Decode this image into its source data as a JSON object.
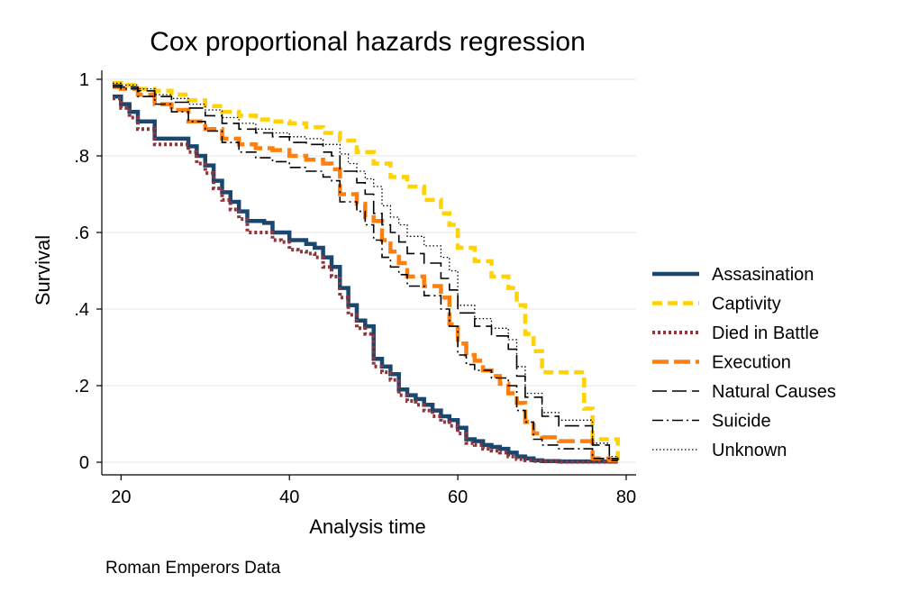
{
  "chart_data": {
    "type": "line",
    "title": "Cox proportional hazards regression",
    "xlabel": "Analysis time",
    "ylabel": "Survival",
    "note": "Roman Emperors Data",
    "xlim": [
      19,
      80
    ],
    "ylim": [
      0,
      1
    ],
    "xticks": [
      {
        "value": 20,
        "label": "20"
      },
      {
        "value": 40,
        "label": "40"
      },
      {
        "value": 60,
        "label": "60"
      },
      {
        "value": 80,
        "label": "80"
      }
    ],
    "yticks": [
      {
        "value": 0,
        "label": "0"
      },
      {
        "value": 0.2,
        "label": ".2"
      },
      {
        "value": 0.4,
        "label": ".4"
      },
      {
        "value": 0.6,
        "label": ".6"
      },
      {
        "value": 0.8,
        "label": ".8"
      },
      {
        "value": 1,
        "label": "1"
      }
    ],
    "grid": true,
    "legend_position": "right",
    "series": [
      {
        "name": "Assasination",
        "color": "#1a476f",
        "style": "solid",
        "x": [
          19,
          20,
          21,
          22,
          24,
          25,
          28,
          29,
          30,
          31,
          32,
          33,
          34,
          35,
          36,
          37,
          38,
          39,
          40,
          41,
          42,
          43,
          44,
          45,
          46,
          47,
          48,
          49,
          50,
          51,
          52,
          53,
          54,
          55,
          56,
          57,
          58,
          59,
          60,
          61,
          62,
          63,
          64,
          65,
          66,
          67,
          68,
          69,
          70,
          72,
          75,
          79
        ],
        "y": [
          0.955,
          0.935,
          0.915,
          0.89,
          0.845,
          0.845,
          0.825,
          0.8,
          0.775,
          0.735,
          0.705,
          0.68,
          0.655,
          0.63,
          0.63,
          0.625,
          0.6,
          0.6,
          0.58,
          0.58,
          0.57,
          0.56,
          0.535,
          0.51,
          0.455,
          0.41,
          0.37,
          0.355,
          0.27,
          0.25,
          0.23,
          0.19,
          0.175,
          0.165,
          0.15,
          0.135,
          0.12,
          0.11,
          0.09,
          0.06,
          0.055,
          0.045,
          0.04,
          0.035,
          0.025,
          0.015,
          0.01,
          0.005,
          0.003,
          0.002,
          0.002,
          0.002
        ]
      },
      {
        "name": "Captivity",
        "color": "#ffd200",
        "style": "dash",
        "x": [
          19,
          20,
          22,
          24,
          26,
          28,
          30,
          32,
          34,
          36,
          38,
          40,
          42,
          44,
          46,
          48,
          50,
          52,
          54,
          56,
          58,
          59,
          60,
          62,
          64,
          66,
          67,
          68,
          69,
          70,
          73,
          75,
          76,
          78,
          79
        ],
        "y": [
          0.99,
          0.985,
          0.975,
          0.97,
          0.96,
          0.945,
          0.93,
          0.915,
          0.905,
          0.895,
          0.89,
          0.885,
          0.875,
          0.86,
          0.84,
          0.81,
          0.78,
          0.745,
          0.72,
          0.685,
          0.65,
          0.62,
          0.56,
          0.525,
          0.485,
          0.455,
          0.41,
          0.335,
          0.29,
          0.235,
          0.235,
          0.14,
          0.06,
          0.06,
          0.005
        ]
      },
      {
        "name": "Died in Battle",
        "color": "#90353b",
        "style": "dot",
        "x": [
          19,
          20,
          21,
          22,
          24,
          25,
          28,
          29,
          30,
          31,
          32,
          33,
          34,
          35,
          36,
          37,
          38,
          39,
          40,
          41,
          42,
          43,
          44,
          45,
          46,
          47,
          48,
          49,
          50,
          51,
          52,
          53,
          54,
          55,
          56,
          57,
          58,
          59,
          60,
          61,
          62,
          63,
          64,
          65,
          66,
          67,
          68,
          69,
          70,
          72,
          75,
          79
        ],
        "y": [
          0.95,
          0.925,
          0.9,
          0.87,
          0.83,
          0.83,
          0.81,
          0.78,
          0.755,
          0.715,
          0.685,
          0.66,
          0.635,
          0.6,
          0.6,
          0.6,
          0.58,
          0.575,
          0.555,
          0.55,
          0.545,
          0.535,
          0.51,
          0.485,
          0.43,
          0.385,
          0.35,
          0.335,
          0.25,
          0.235,
          0.215,
          0.175,
          0.16,
          0.15,
          0.135,
          0.12,
          0.105,
          0.095,
          0.075,
          0.05,
          0.045,
          0.035,
          0.03,
          0.025,
          0.015,
          0.008,
          0.005,
          0.003,
          0.002,
          0.001,
          0.001,
          0.001
        ]
      },
      {
        "name": "Execution",
        "color": "#ff7f0e",
        "style": "longdash",
        "x": [
          19,
          20,
          22,
          24,
          26,
          28,
          30,
          32,
          34,
          36,
          38,
          40,
          42,
          44,
          45,
          46,
          48,
          49,
          50,
          51,
          52,
          53,
          54,
          56,
          58,
          59,
          60,
          61,
          62,
          63,
          64,
          65,
          66,
          67,
          68,
          69,
          70,
          72,
          74,
          76,
          78,
          79
        ],
        "y": [
          0.98,
          0.975,
          0.96,
          0.935,
          0.92,
          0.89,
          0.87,
          0.845,
          0.83,
          0.82,
          0.815,
          0.8,
          0.79,
          0.78,
          0.765,
          0.7,
          0.675,
          0.64,
          0.63,
          0.58,
          0.55,
          0.52,
          0.485,
          0.46,
          0.43,
          0.36,
          0.31,
          0.28,
          0.265,
          0.24,
          0.225,
          0.205,
          0.18,
          0.155,
          0.105,
          0.075,
          0.065,
          0.055,
          0.055,
          0.01,
          0.005,
          0.005
        ]
      },
      {
        "name": "Natural Causes",
        "color": "#000000",
        "style": "longdash-thin",
        "x": [
          19,
          20,
          22,
          24,
          26,
          28,
          30,
          32,
          34,
          36,
          38,
          40,
          42,
          44,
          45,
          46,
          48,
          49,
          50,
          51,
          52,
          53,
          54,
          56,
          58,
          59,
          60,
          62,
          64,
          66,
          67,
          68,
          70,
          72,
          74,
          76,
          78,
          79
        ],
        "y": [
          0.985,
          0.98,
          0.97,
          0.955,
          0.94,
          0.925,
          0.905,
          0.885,
          0.87,
          0.86,
          0.85,
          0.835,
          0.83,
          0.81,
          0.8,
          0.76,
          0.73,
          0.7,
          0.65,
          0.62,
          0.6,
          0.575,
          0.545,
          0.52,
          0.48,
          0.45,
          0.39,
          0.355,
          0.33,
          0.295,
          0.225,
          0.17,
          0.12,
          0.095,
          0.095,
          0.045,
          0.01,
          0.005
        ]
      },
      {
        "name": "Suicide",
        "color": "#000000",
        "style": "dashdot",
        "x": [
          19,
          20,
          22,
          24,
          26,
          28,
          30,
          32,
          34,
          36,
          38,
          40,
          42,
          44,
          45,
          46,
          48,
          49,
          50,
          51,
          52,
          53,
          54,
          56,
          58,
          59,
          60,
          61,
          62,
          64,
          66,
          67,
          68,
          69,
          70,
          72,
          74,
          76,
          78,
          79
        ],
        "y": [
          0.98,
          0.975,
          0.955,
          0.935,
          0.915,
          0.89,
          0.865,
          0.835,
          0.81,
          0.795,
          0.785,
          0.77,
          0.76,
          0.745,
          0.735,
          0.68,
          0.655,
          0.62,
          0.58,
          0.535,
          0.51,
          0.49,
          0.46,
          0.435,
          0.4,
          0.355,
          0.28,
          0.255,
          0.24,
          0.22,
          0.2,
          0.135,
          0.105,
          0.06,
          0.045,
          0.035,
          0.035,
          0.01,
          0.005,
          0.005
        ]
      },
      {
        "name": "Unknown",
        "color": "#000000",
        "style": "finedot",
        "x": [
          19,
          20,
          22,
          24,
          26,
          28,
          30,
          32,
          34,
          36,
          38,
          40,
          42,
          44,
          46,
          47,
          48,
          49,
          50,
          51,
          52,
          53,
          54,
          56,
          58,
          59,
          60,
          62,
          64,
          66,
          67,
          68,
          70,
          72,
          74,
          76,
          78,
          79
        ],
        "y": [
          0.99,
          0.985,
          0.975,
          0.96,
          0.95,
          0.935,
          0.92,
          0.9,
          0.885,
          0.87,
          0.86,
          0.85,
          0.845,
          0.83,
          0.805,
          0.78,
          0.76,
          0.74,
          0.72,
          0.67,
          0.64,
          0.62,
          0.59,
          0.565,
          0.535,
          0.5,
          0.41,
          0.375,
          0.35,
          0.32,
          0.25,
          0.18,
          0.13,
          0.11,
          0.11,
          0.05,
          0.015,
          0.01
        ]
      }
    ]
  }
}
